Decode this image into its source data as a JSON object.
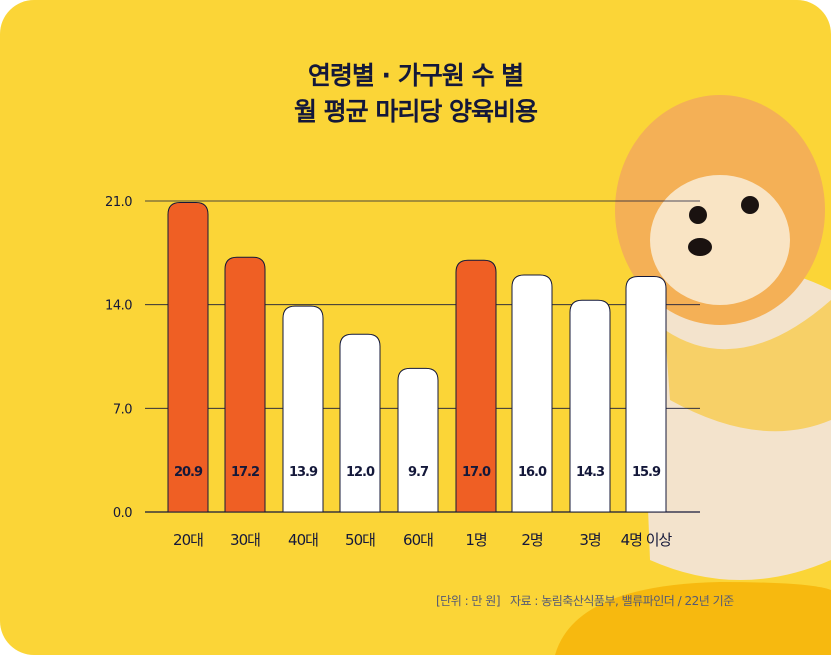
{
  "chart_data": {
    "type": "bar",
    "title": [
      "연령별 · 가구원 수 별",
      "월 평균 마리당 양육비용"
    ],
    "categories": [
      "20대",
      "30대",
      "40대",
      "50대",
      "60대",
      "1명",
      "2명",
      "3명",
      "4명 이상"
    ],
    "values": [
      20.9,
      17.2,
      13.9,
      12.0,
      9.7,
      17.0,
      16.0,
      14.3,
      15.9
    ],
    "value_labels": [
      "20.9",
      "17.2",
      "13.9",
      "12.0",
      "9.7",
      "17.0",
      "16.0",
      "14.3",
      "15.9"
    ],
    "highlighted": [
      true,
      true,
      false,
      false,
      false,
      true,
      false,
      false,
      false
    ],
    "yticks": [
      0,
      7,
      14,
      21
    ],
    "ytick_labels": [
      "0.0",
      "7.0",
      "14.0",
      "21.0"
    ],
    "ylim": [
      0,
      21
    ],
    "xlabel": "",
    "ylabel": "",
    "grid": true
  },
  "footer": {
    "unit": "[단위 : 만 원]",
    "source": "자료 : 농림축산식품부, 밸류파인더 / 22년 기준"
  },
  "colors": {
    "background": "#fbd537",
    "highlight": "#ef5f24",
    "bar": "#ffffff",
    "ink": "#14183a"
  }
}
